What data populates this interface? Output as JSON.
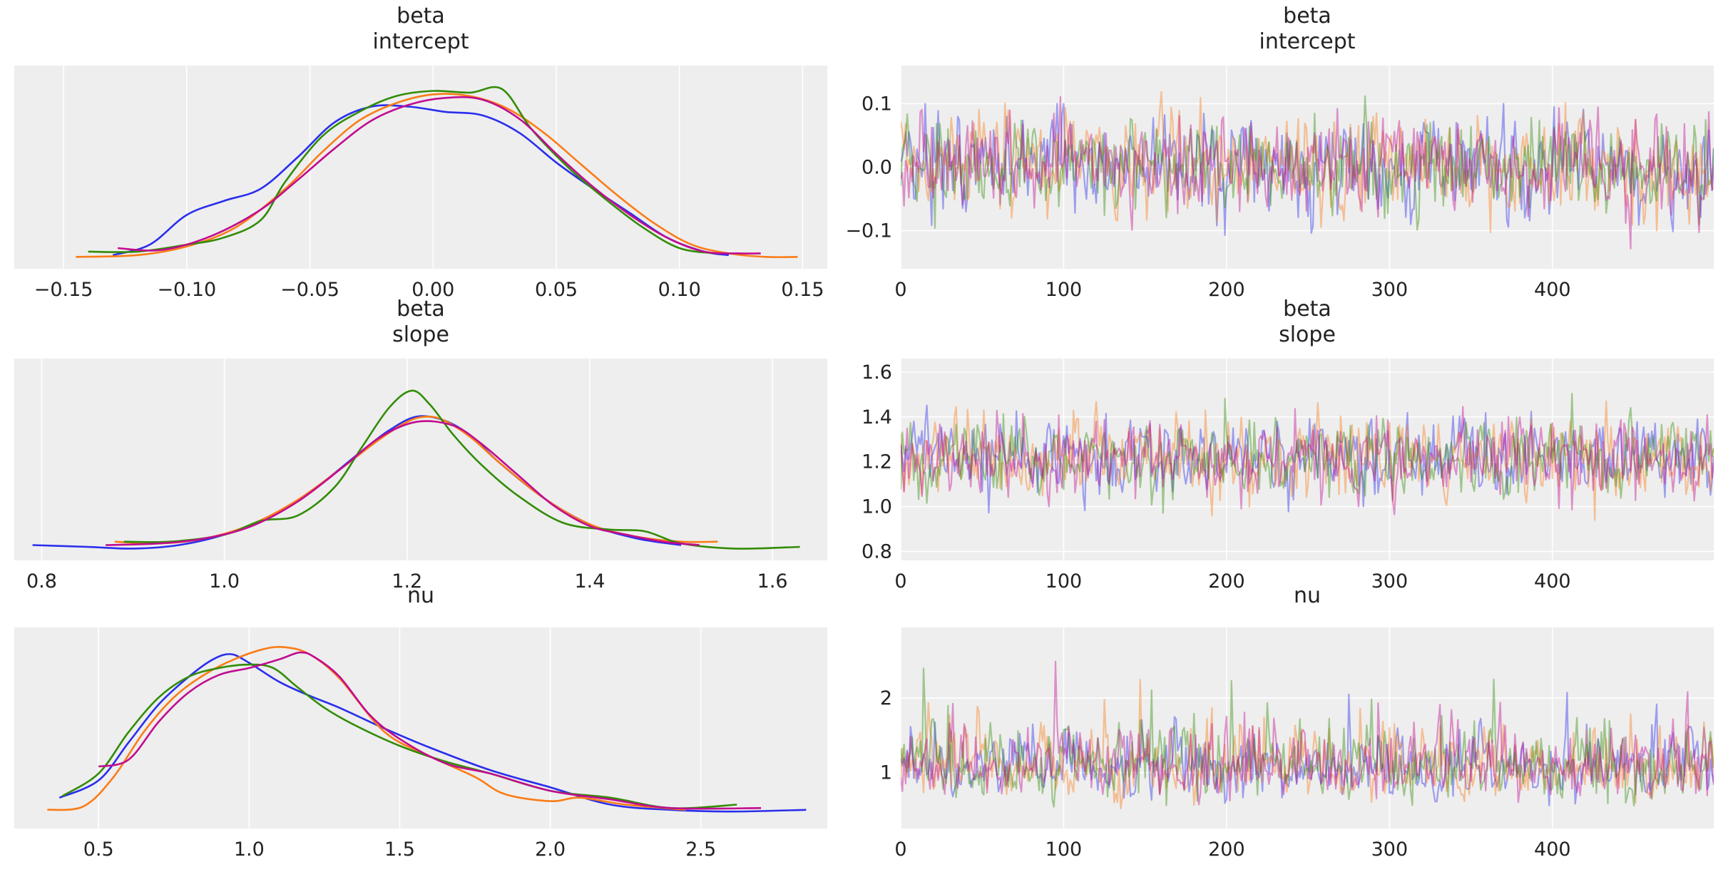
{
  "figure": {
    "colors": [
      "#2a2eec",
      "#fa7c17",
      "#328c06",
      "#c10c90"
    ]
  },
  "chart_data": [
    {
      "type": "line",
      "panel": "kde",
      "title": [
        "beta",
        "intercept"
      ],
      "xlabel": "",
      "ylabel": "",
      "xlim": [
        -0.17,
        0.16
      ],
      "xticks": [
        -0.15,
        -0.1,
        -0.05,
        0.0,
        0.05,
        0.1,
        0.15
      ],
      "xtick_labels": [
        "−0.15",
        "−0.10",
        "−0.05",
        "0.00",
        "0.05",
        "0.10",
        "0.15"
      ],
      "yticks": [],
      "ytick_labels": [],
      "grid": "x",
      "series": [
        {
          "x": [
            -0.13,
            -0.115,
            -0.1,
            -0.085,
            -0.07,
            -0.055,
            -0.04,
            -0.025,
            -0.01,
            0.005,
            0.02,
            0.035,
            0.05,
            0.065,
            0.08,
            0.095,
            0.11,
            0.12
          ],
          "y": [
            0.02,
            0.08,
            0.25,
            0.33,
            0.4,
            0.58,
            0.78,
            0.87,
            0.87,
            0.84,
            0.82,
            0.72,
            0.55,
            0.4,
            0.26,
            0.12,
            0.04,
            0.02
          ]
        },
        {
          "x": [
            -0.145,
            -0.12,
            -0.1,
            -0.08,
            -0.06,
            -0.045,
            -0.03,
            -0.015,
            0.0,
            0.015,
            0.03,
            0.045,
            0.06,
            0.075,
            0.09,
            0.105,
            0.12,
            0.135,
            0.148
          ],
          "y": [
            0.01,
            0.02,
            0.07,
            0.18,
            0.4,
            0.61,
            0.79,
            0.89,
            0.94,
            0.93,
            0.86,
            0.72,
            0.54,
            0.36,
            0.2,
            0.08,
            0.03,
            0.01,
            0.01
          ]
        },
        {
          "x": [
            -0.14,
            -0.12,
            -0.1,
            -0.085,
            -0.07,
            -0.06,
            -0.045,
            -0.03,
            -0.015,
            0.0,
            0.015,
            0.028,
            0.04,
            0.055,
            0.07,
            0.085,
            0.1,
            0.115
          ],
          "y": [
            0.04,
            0.04,
            0.08,
            0.12,
            0.22,
            0.44,
            0.7,
            0.84,
            0.93,
            0.96,
            0.95,
            0.97,
            0.74,
            0.52,
            0.34,
            0.18,
            0.06,
            0.03
          ]
        },
        {
          "x": [
            -0.128,
            -0.11,
            -0.09,
            -0.07,
            -0.055,
            -0.04,
            -0.025,
            -0.01,
            0.005,
            0.02,
            0.035,
            0.05,
            0.065,
            0.08,
            0.095,
            0.11,
            0.125,
            0.133
          ],
          "y": [
            0.06,
            0.05,
            0.13,
            0.28,
            0.45,
            0.63,
            0.79,
            0.88,
            0.92,
            0.91,
            0.8,
            0.6,
            0.41,
            0.25,
            0.12,
            0.04,
            0.03,
            0.03
          ]
        }
      ]
    },
    {
      "type": "line",
      "panel": "trace",
      "title": [
        "beta",
        "intercept"
      ],
      "xlabel": "",
      "ylabel": "",
      "xlim": [
        0,
        499
      ],
      "ylim": [
        -0.16,
        0.16
      ],
      "xticks": [
        0,
        100,
        200,
        300,
        400
      ],
      "xtick_labels": [
        "0",
        "100",
        "200",
        "300",
        "400"
      ],
      "yticks": [
        -0.1,
        0.0,
        0.1
      ],
      "ytick_labels": [
        "−0.1",
        "0.0",
        "0.1"
      ],
      "grid": "both",
      "series_length": 500,
      "series_stats": [
        {
          "mean": 0.0,
          "sd": 0.048,
          "min": -0.13,
          "max": 0.1
        },
        {
          "mean": 0.0,
          "sd": 0.05,
          "min": -0.15,
          "max": 0.15
        },
        {
          "mean": 0.0,
          "sd": 0.046,
          "min": -0.14,
          "max": 0.12
        },
        {
          "mean": 0.0,
          "sd": 0.049,
          "min": -0.14,
          "max": 0.14
        }
      ]
    },
    {
      "type": "line",
      "panel": "kde",
      "title": [
        "beta",
        "slope"
      ],
      "xlabel": "",
      "ylabel": "",
      "xlim": [
        0.77,
        1.66
      ],
      "xticks": [
        0.8,
        1.0,
        1.2,
        1.4,
        1.6
      ],
      "xtick_labels": [
        "0.8",
        "1.0",
        "1.2",
        "1.4",
        "1.6"
      ],
      "yticks": [],
      "ytick_labels": [],
      "grid": "x",
      "series": [
        {
          "x": [
            0.79,
            0.85,
            0.9,
            0.95,
            1.0,
            1.05,
            1.1,
            1.15,
            1.18,
            1.21,
            1.24,
            1.27,
            1.3,
            1.35,
            1.4,
            1.45,
            1.5
          ],
          "y": [
            0.03,
            0.02,
            0.01,
            0.03,
            0.09,
            0.19,
            0.36,
            0.57,
            0.69,
            0.77,
            0.75,
            0.66,
            0.51,
            0.3,
            0.15,
            0.07,
            0.03
          ]
        },
        {
          "x": [
            0.88,
            0.93,
            0.98,
            1.03,
            1.08,
            1.13,
            1.17,
            1.2,
            1.22,
            1.24,
            1.27,
            1.3,
            1.35,
            1.4,
            1.45,
            1.5,
            1.54
          ],
          "y": [
            0.05,
            0.04,
            0.07,
            0.15,
            0.29,
            0.48,
            0.64,
            0.74,
            0.77,
            0.75,
            0.65,
            0.51,
            0.3,
            0.15,
            0.08,
            0.05,
            0.05
          ]
        },
        {
          "x": [
            0.89,
            0.94,
            1.0,
            1.04,
            1.08,
            1.12,
            1.15,
            1.18,
            1.205,
            1.225,
            1.25,
            1.28,
            1.32,
            1.37,
            1.42,
            1.46,
            1.5,
            1.56,
            1.63
          ],
          "y": [
            0.05,
            0.05,
            0.09,
            0.17,
            0.2,
            0.36,
            0.59,
            0.82,
            0.92,
            0.84,
            0.67,
            0.5,
            0.32,
            0.16,
            0.12,
            0.11,
            0.04,
            0.01,
            0.02
          ]
        },
        {
          "x": [
            0.87,
            0.93,
            0.98,
            1.03,
            1.08,
            1.13,
            1.17,
            1.21,
            1.25,
            1.28,
            1.32,
            1.36,
            1.4,
            1.44,
            1.48,
            1.52
          ],
          "y": [
            0.03,
            0.04,
            0.07,
            0.14,
            0.28,
            0.48,
            0.65,
            0.74,
            0.72,
            0.62,
            0.44,
            0.26,
            0.14,
            0.09,
            0.05,
            0.03
          ]
        }
      ]
    },
    {
      "type": "line",
      "panel": "trace",
      "title": [
        "beta",
        "slope"
      ],
      "xlabel": "",
      "ylabel": "",
      "xlim": [
        0,
        499
      ],
      "ylim": [
        0.76,
        1.66
      ],
      "xticks": [
        0,
        100,
        200,
        300,
        400
      ],
      "xtick_labels": [
        "0",
        "100",
        "200",
        "300",
        "400"
      ],
      "yticks": [
        0.8,
        1.0,
        1.2,
        1.4,
        1.6
      ],
      "ytick_labels": [
        "0.8",
        "1.0",
        "1.2",
        "1.4",
        "1.6"
      ],
      "grid": "both",
      "series_length": 500,
      "series_stats": [
        {
          "mean": 1.22,
          "sd": 0.11,
          "min": 0.79,
          "max": 1.5
        },
        {
          "mean": 1.22,
          "sd": 0.11,
          "min": 0.9,
          "max": 1.54
        },
        {
          "mean": 1.22,
          "sd": 0.11,
          "min": 0.89,
          "max": 1.63
        },
        {
          "mean": 1.22,
          "sd": 0.11,
          "min": 0.87,
          "max": 1.52
        }
      ]
    },
    {
      "type": "line",
      "panel": "kde",
      "title": [
        "nu"
      ],
      "xlabel": "",
      "ylabel": "",
      "xlim": [
        0.22,
        2.92
      ],
      "xticks": [
        0.5,
        1.0,
        1.5,
        2.0,
        2.5
      ],
      "xtick_labels": [
        "0.5",
        "1.0",
        "1.5",
        "2.0",
        "2.5"
      ],
      "yticks": [],
      "ytick_labels": [],
      "grid": "x",
      "series": [
        {
          "x": [
            0.37,
            0.5,
            0.6,
            0.7,
            0.8,
            0.88,
            0.94,
            1.0,
            1.1,
            1.2,
            1.3,
            1.45,
            1.6,
            1.8,
            2.0,
            2.2,
            2.4,
            2.6,
            2.85
          ],
          "y": [
            0.12,
            0.22,
            0.44,
            0.66,
            0.82,
            0.92,
            0.95,
            0.9,
            0.79,
            0.71,
            0.64,
            0.52,
            0.41,
            0.28,
            0.18,
            0.08,
            0.05,
            0.04,
            0.05
          ]
        },
        {
          "x": [
            0.33,
            0.45,
            0.55,
            0.65,
            0.75,
            0.85,
            0.95,
            1.05,
            1.12,
            1.2,
            1.3,
            1.45,
            1.6,
            1.75,
            1.85,
            2.0,
            2.1,
            2.25,
            2.45
          ],
          "y": [
            0.05,
            0.07,
            0.24,
            0.5,
            0.7,
            0.83,
            0.92,
            0.98,
            0.99,
            0.95,
            0.81,
            0.5,
            0.36,
            0.24,
            0.14,
            0.1,
            0.12,
            0.08,
            0.05
          ]
        },
        {
          "x": [
            0.38,
            0.5,
            0.6,
            0.7,
            0.8,
            0.9,
            1.0,
            1.08,
            1.16,
            1.25,
            1.35,
            1.5,
            1.65,
            1.8,
            2.0,
            2.2,
            2.4,
            2.62
          ],
          "y": [
            0.13,
            0.26,
            0.5,
            0.7,
            0.82,
            0.87,
            0.89,
            0.87,
            0.76,
            0.64,
            0.54,
            0.42,
            0.33,
            0.26,
            0.16,
            0.12,
            0.06,
            0.08
          ]
        },
        {
          "x": [
            0.5,
            0.6,
            0.7,
            0.8,
            0.9,
            1.0,
            1.1,
            1.17,
            1.22,
            1.3,
            1.4,
            1.5,
            1.65,
            1.8,
            2.0,
            2.2,
            2.4,
            2.7
          ],
          "y": [
            0.3,
            0.34,
            0.56,
            0.73,
            0.83,
            0.87,
            0.92,
            0.96,
            0.93,
            0.82,
            0.6,
            0.46,
            0.32,
            0.26,
            0.16,
            0.11,
            0.06,
            0.06
          ]
        }
      ]
    },
    {
      "type": "line",
      "panel": "trace",
      "title": [
        "nu"
      ],
      "xlabel": "",
      "ylabel": "",
      "xlim": [
        0,
        499
      ],
      "ylim": [
        0.25,
        2.95
      ],
      "xticks": [
        0,
        100,
        200,
        300,
        400
      ],
      "xtick_labels": [
        "0",
        "100",
        "200",
        "300",
        "400"
      ],
      "yticks": [
        1,
        2
      ],
      "ytick_labels": [
        "1",
        "2"
      ],
      "grid": "both",
      "series_length": 500,
      "series_stats": [
        {
          "mean": 1.1,
          "sd": 0.35,
          "min": 0.37,
          "max": 2.85
        },
        {
          "mean": 1.1,
          "sd": 0.35,
          "min": 0.33,
          "max": 2.45
        },
        {
          "mean": 1.1,
          "sd": 0.35,
          "min": 0.38,
          "max": 2.62
        },
        {
          "mean": 1.1,
          "sd": 0.35,
          "min": 0.5,
          "max": 2.7
        }
      ]
    }
  ]
}
